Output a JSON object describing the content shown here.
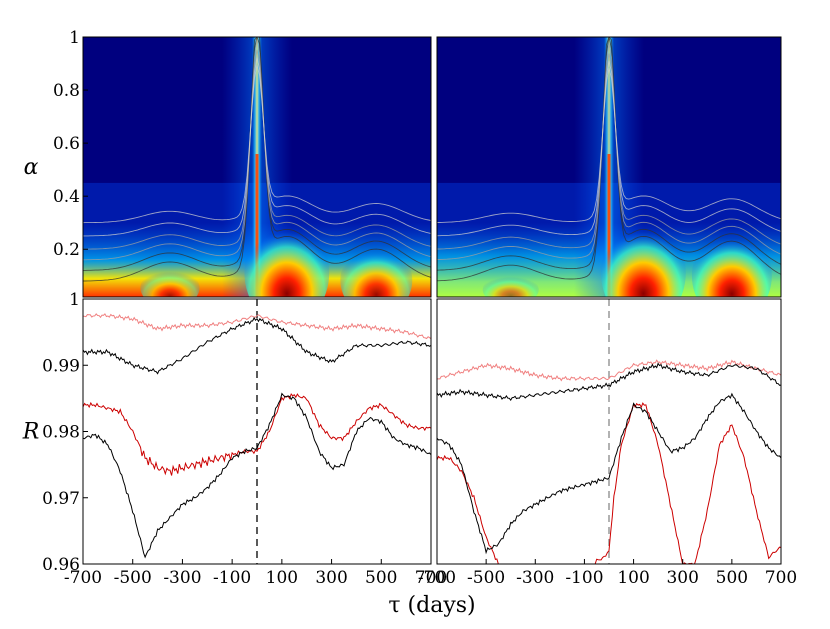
{
  "chart_data": [
    {
      "type": "heatmap",
      "panel": "top-left",
      "ylabel": "α",
      "xlabel": "",
      "ylim": [
        0.02,
        1
      ],
      "xlim": [
        -700,
        700
      ],
      "yticks": [
        "1",
        "0.8",
        "0.6",
        "0.4",
        "0.2"
      ],
      "ytick_values": [
        1,
        0.8,
        0.6,
        0.4,
        0.2
      ],
      "colormap": "jet",
      "background_color": "#00007f",
      "hotspots": [
        {
          "tau": 0,
          "alpha_top": 1.0,
          "intensity": 0.85
        },
        {
          "tau": 120,
          "alpha_top": 0.28,
          "intensity": 1.0
        },
        {
          "tau": 480,
          "alpha_top": 0.2,
          "intensity": 0.85
        },
        {
          "tau": -350,
          "alpha_top": 0.12,
          "intensity": 0.7
        }
      ]
    },
    {
      "type": "heatmap",
      "panel": "top-right",
      "ylabel": "",
      "xlabel": "",
      "ylim": [
        0.02,
        1
      ],
      "xlim": [
        -700,
        700
      ],
      "colormap": "jet",
      "background_color": "#00007f",
      "hotspots": [
        {
          "tau": 0,
          "alpha_top": 1.0,
          "intensity": 0.8
        },
        {
          "tau": 140,
          "alpha_top": 0.28,
          "intensity": 1.0
        },
        {
          "tau": 500,
          "alpha_top": 0.25,
          "intensity": 1.0
        },
        {
          "tau": -400,
          "alpha_top": 0.1,
          "intensity": 0.55
        }
      ]
    },
    {
      "type": "line",
      "panel": "bottom-left",
      "ylabel": "R",
      "xlabel": "",
      "ylim": [
        0.96,
        1.0
      ],
      "xlim": [
        -700,
        700
      ],
      "yticks": [
        "1",
        "0.99",
        "0.98",
        "0.97",
        "0.96"
      ],
      "ytick_values": [
        1.0,
        0.99,
        0.98,
        0.97,
        0.96
      ],
      "xticks": [
        "-700",
        "-500",
        "-300",
        "-100",
        "100",
        "300",
        "500",
        "700"
      ],
      "xtick_values": [
        -700,
        -500,
        -300,
        -100,
        100,
        300,
        500,
        700
      ],
      "vline_tau": 0,
      "series": [
        {
          "color": "#f08080",
          "x": [
            -700,
            -600,
            -500,
            -400,
            -300,
            -200,
            -100,
            0,
            100,
            200,
            300,
            400,
            500,
            600,
            700
          ],
          "values": [
            0.9975,
            0.9975,
            0.997,
            0.9955,
            0.996,
            0.996,
            0.9965,
            0.9975,
            0.9965,
            0.996,
            0.9955,
            0.996,
            0.9955,
            0.995,
            0.994
          ]
        },
        {
          "color": "#000000",
          "x": [
            -700,
            -600,
            -500,
            -400,
            -300,
            -200,
            -100,
            0,
            100,
            200,
            300,
            400,
            500,
            600,
            700
          ],
          "values": [
            0.992,
            0.992,
            0.99,
            0.989,
            0.991,
            0.9935,
            0.9955,
            0.997,
            0.9955,
            0.992,
            0.9905,
            0.993,
            0.993,
            0.9935,
            0.993
          ]
        },
        {
          "color": "#cc0000",
          "x": [
            -700,
            -650,
            -600,
            -550,
            -500,
            -450,
            -400,
            -350,
            -300,
            -250,
            -200,
            -150,
            -100,
            -50,
            0,
            50,
            100,
            150,
            200,
            250,
            300,
            350,
            400,
            450,
            500,
            550,
            600,
            650,
            700
          ],
          "values": [
            0.984,
            0.984,
            0.9835,
            0.983,
            0.98,
            0.976,
            0.9745,
            0.974,
            0.9745,
            0.975,
            0.9755,
            0.976,
            0.9765,
            0.977,
            0.977,
            0.98,
            0.985,
            0.9855,
            0.985,
            0.981,
            0.979,
            0.979,
            0.9815,
            0.9835,
            0.984,
            0.9825,
            0.981,
            0.9805,
            0.9805
          ]
        },
        {
          "color": "#000000",
          "x": [
            -700,
            -650,
            -600,
            -550,
            -500,
            -450,
            -400,
            -350,
            -300,
            -250,
            -200,
            -150,
            -100,
            -50,
            0,
            50,
            100,
            150,
            200,
            250,
            300,
            350,
            400,
            450,
            500,
            550,
            600,
            650,
            700
          ],
          "values": [
            0.979,
            0.9795,
            0.978,
            0.974,
            0.968,
            0.961,
            0.965,
            0.967,
            0.969,
            0.97,
            0.9715,
            0.9735,
            0.976,
            0.977,
            0.9775,
            0.981,
            0.9855,
            0.985,
            0.982,
            0.977,
            0.9745,
            0.975,
            0.98,
            0.982,
            0.9815,
            0.979,
            0.978,
            0.9775,
            0.9765
          ]
        }
      ]
    },
    {
      "type": "line",
      "panel": "bottom-right",
      "ylabel": "",
      "xlabel": "",
      "ylim": [
        0.96,
        1.0
      ],
      "xlim": [
        -700,
        700
      ],
      "xticks": [
        "-700",
        "-500",
        "-300",
        "-100",
        "100",
        "300",
        "500",
        "700"
      ],
      "xtick_values": [
        -700,
        -500,
        -300,
        -100,
        100,
        300,
        500,
        700
      ],
      "vline_tau": 0,
      "series": [
        {
          "color": "#f08080",
          "x": [
            -700,
            -600,
            -500,
            -400,
            -300,
            -200,
            -100,
            0,
            100,
            200,
            300,
            400,
            500,
            600,
            700
          ],
          "values": [
            0.988,
            0.989,
            0.99,
            0.9895,
            0.9885,
            0.988,
            0.988,
            0.988,
            0.99,
            0.9905,
            0.99,
            0.9895,
            0.9905,
            0.9895,
            0.9885
          ]
        },
        {
          "color": "#000000",
          "x": [
            -700,
            -600,
            -500,
            -400,
            -300,
            -200,
            -100,
            0,
            100,
            200,
            300,
            400,
            500,
            600,
            700
          ],
          "values": [
            0.9855,
            0.986,
            0.9855,
            0.985,
            0.9855,
            0.986,
            0.9865,
            0.987,
            0.989,
            0.99,
            0.989,
            0.9885,
            0.99,
            0.9895,
            0.987
          ]
        },
        {
          "color": "#cc0000",
          "x": [
            -700,
            -650,
            -600,
            -550,
            -500,
            -450,
            -430,
            -100,
            -50,
            -20,
            0,
            20,
            50,
            100,
            150,
            200,
            250,
            300,
            350,
            400,
            450,
            500,
            550,
            600,
            650,
            680,
            700
          ],
          "values": [
            0.976,
            0.976,
            0.974,
            0.97,
            0.964,
            0.96,
            0.958,
            0.958,
            0.9605,
            0.961,
            0.962,
            0.97,
            0.978,
            0.984,
            0.984,
            0.978,
            0.969,
            0.96,
            0.96,
            0.968,
            0.978,
            0.981,
            0.976,
            0.968,
            0.961,
            0.962,
            0.9625
          ]
        },
        {
          "color": "#000000",
          "x": [
            -700,
            -650,
            -600,
            -550,
            -500,
            -450,
            -400,
            -350,
            -300,
            -250,
            -200,
            -150,
            -100,
            -50,
            0,
            50,
            100,
            150,
            200,
            250,
            300,
            350,
            400,
            450,
            500,
            550,
            600,
            650,
            700
          ],
          "values": [
            0.979,
            0.978,
            0.975,
            0.968,
            0.962,
            0.963,
            0.966,
            0.968,
            0.969,
            0.97,
            0.971,
            0.9715,
            0.972,
            0.9725,
            0.973,
            0.979,
            0.984,
            0.983,
            0.98,
            0.977,
            0.9775,
            0.979,
            0.982,
            0.9845,
            0.9855,
            0.983,
            0.98,
            0.9775,
            0.976
          ]
        }
      ]
    }
  ],
  "shared": {
    "xlabel": "τ (days)"
  }
}
